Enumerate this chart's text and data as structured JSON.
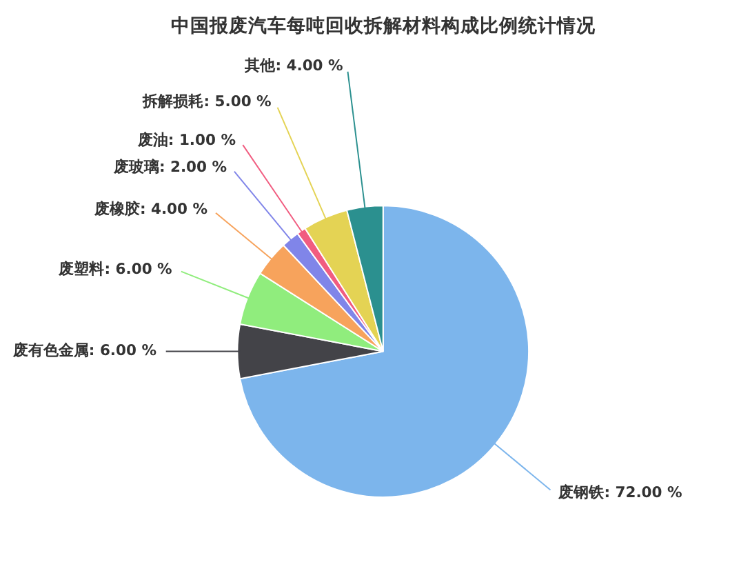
{
  "chart_data": {
    "type": "pie",
    "title": "中国报废汽车每吨回收拆解材料构成比例统计情况",
    "categories": [
      "废钢铁",
      "废有色金属",
      "废塑料",
      "废橡胶",
      "废玻璃",
      "废油",
      "拆解损耗",
      "其他"
    ],
    "values": [
      72,
      6,
      6,
      4,
      2,
      1,
      5,
      4
    ],
    "colors": [
      "#7cb5ec",
      "#434348",
      "#90ed7d",
      "#f7a35c",
      "#8085e9",
      "#f15c80",
      "#e4d354",
      "#2b908f"
    ],
    "value_labels": [
      "72.00 %",
      "6.00 %",
      "6.00 %",
      "4.00 %",
      "2.00 %",
      "1.00 %",
      "5.00 %",
      "4.00 %"
    ],
    "legend": false
  }
}
